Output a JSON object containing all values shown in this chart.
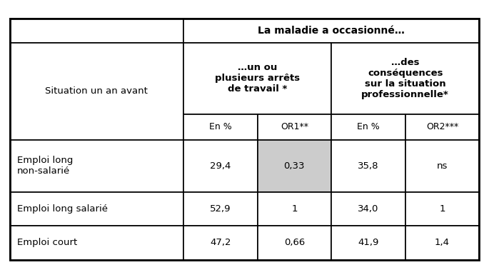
{
  "header_top": "La maladie a occasioné…",
  "header_left_label": "Situation un an avant",
  "col_group1_label": "…un ou\nplusieurs arrêts\nde travail *",
  "col_group2_label": "…des\nconséquences\nsur la situation\nprofessionnelle*",
  "sub_headers": [
    "En %",
    "OR1**",
    "En %",
    "OR2***"
  ],
  "rows": [
    {
      "label": "Emploi long\nnon-salarié",
      "values": [
        "29,4",
        "0,33",
        "35,8",
        "ns"
      ],
      "highlight_col": 1
    },
    {
      "label": "Emploi long salarié",
      "values": [
        "52,9",
        "1",
        "34,0",
        "1"
      ],
      "highlight_col": -1
    },
    {
      "label": "Emploi court",
      "values": [
        "47,2",
        "0,66",
        "41,9",
        "1,4"
      ],
      "highlight_col": -1
    }
  ],
  "highlight_color": "#cccccc",
  "background_color": "#ffffff",
  "border_color": "#000000",
  "text_color": "#000000"
}
